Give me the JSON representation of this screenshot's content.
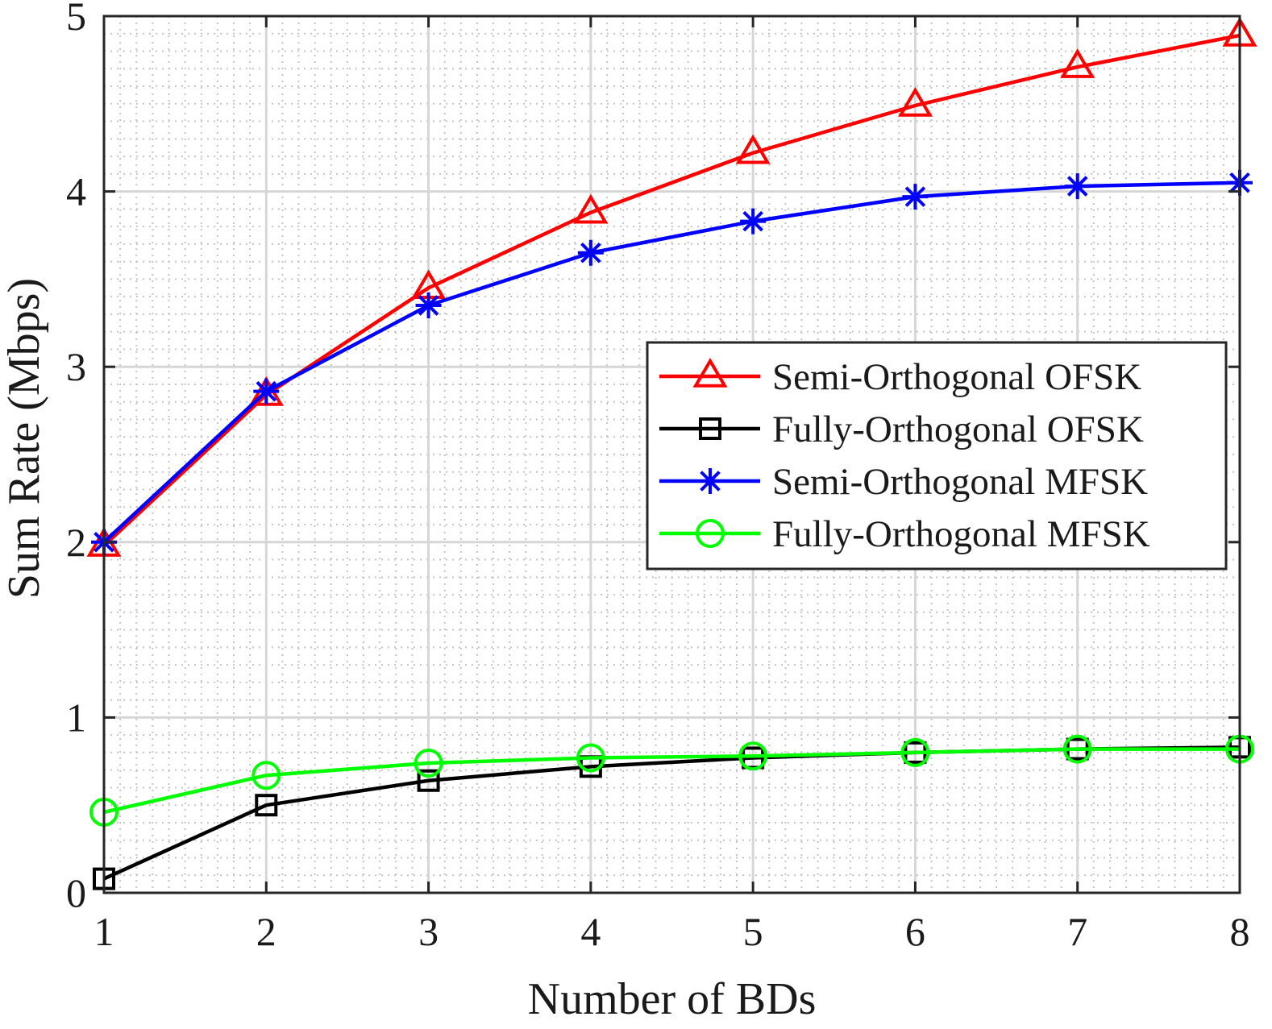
{
  "chart_data": {
    "type": "line",
    "title": "",
    "xlabel": "Number of BDs",
    "ylabel": "Sum Rate (Mbps)",
    "xlim": [
      1,
      8
    ],
    "ylim": [
      0,
      5
    ],
    "xticks": [
      "1",
      "2",
      "3",
      "4",
      "5",
      "6",
      "7",
      "8"
    ],
    "yticks": [
      "0",
      "1",
      "2",
      "3",
      "4",
      "5"
    ],
    "grid": "major and minor",
    "legend_position": "center-right",
    "x": [
      1,
      2,
      3,
      4,
      5,
      6,
      7,
      8
    ],
    "series": [
      {
        "name": "Semi-Orthogonal OFSK",
        "color": "#ff0000",
        "marker": "triangle",
        "values": [
          1.98,
          2.84,
          3.45,
          3.88,
          4.22,
          4.49,
          4.71,
          4.89
        ]
      },
      {
        "name": "Fully-Orthogonal OFSK",
        "color": "#000000",
        "marker": "square",
        "values": [
          0.08,
          0.5,
          0.64,
          0.72,
          0.77,
          0.8,
          0.82,
          0.83
        ]
      },
      {
        "name": "Semi-Orthogonal MFSK",
        "color": "#0000ff",
        "marker": "asterisk",
        "values": [
          2.0,
          2.86,
          3.35,
          3.65,
          3.83,
          3.97,
          4.03,
          4.05
        ]
      },
      {
        "name": "Fully-Orthogonal MFSK",
        "color": "#00ff00",
        "marker": "circle",
        "values": [
          0.46,
          0.67,
          0.74,
          0.77,
          0.78,
          0.8,
          0.82,
          0.82
        ]
      }
    ]
  }
}
